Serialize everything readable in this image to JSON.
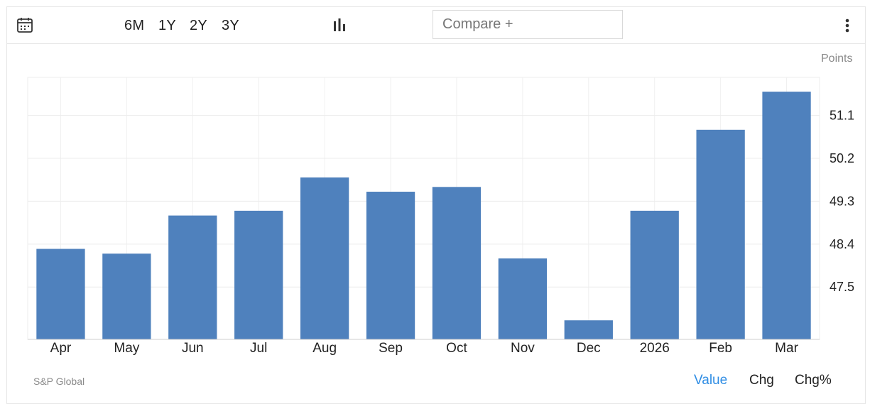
{
  "toolbar": {
    "calendar_icon": "calendar-icon",
    "ranges": [
      "6M",
      "1Y",
      "2Y",
      "3Y"
    ],
    "chart_type_icon": "bar-chart-icon",
    "compare_placeholder": "Compare +",
    "more_icon": "vertical-dots-icon"
  },
  "chart_data": {
    "type": "bar",
    "categories": [
      "Apr",
      "May",
      "Jun",
      "Jul",
      "Aug",
      "Sep",
      "Oct",
      "Nov",
      "Dec",
      "2026",
      "Feb",
      "Mar"
    ],
    "values": [
      48.3,
      48.2,
      49.0,
      49.1,
      49.8,
      49.5,
      49.6,
      48.1,
      46.8,
      49.1,
      50.8,
      51.6
    ],
    "ylabel": "Points",
    "yticks": [
      "51.1",
      "50.2",
      "49.3",
      "48.4",
      "47.5"
    ],
    "ylim": [
      46.4,
      51.9
    ],
    "grid": true,
    "bar_color": "#4f81bd"
  },
  "footer": {
    "source": "S&P Global",
    "tabs": [
      "Value",
      "Chg",
      "Chg%"
    ],
    "active_tab_color": "#2f8de4"
  }
}
